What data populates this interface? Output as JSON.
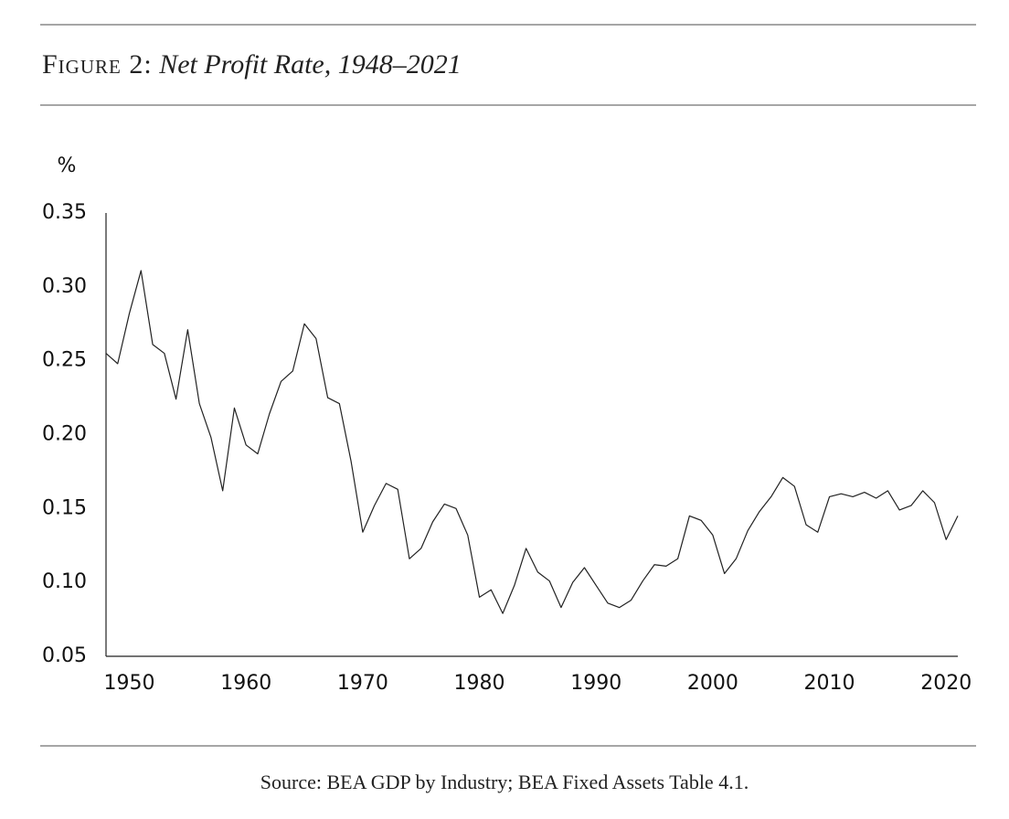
{
  "chart_data": {
    "type": "line",
    "figure_label": "Figure 2:",
    "title": "Net Profit Rate, 1948–2021",
    "y_label": "%",
    "source": "Source: BEA GDP by Industry; BEA Fixed Assets Table 4.1.",
    "x": [
      1948,
      1949,
      1950,
      1951,
      1952,
      1953,
      1954,
      1955,
      1956,
      1957,
      1958,
      1959,
      1960,
      1961,
      1962,
      1963,
      1964,
      1965,
      1966,
      1967,
      1968,
      1969,
      1970,
      1971,
      1972,
      1973,
      1974,
      1975,
      1976,
      1977,
      1978,
      1979,
      1980,
      1981,
      1982,
      1983,
      1984,
      1985,
      1986,
      1987,
      1988,
      1989,
      1990,
      1991,
      1992,
      1993,
      1994,
      1995,
      1996,
      1997,
      1998,
      1999,
      2000,
      2001,
      2002,
      2003,
      2004,
      2005,
      2006,
      2007,
      2008,
      2009,
      2010,
      2011,
      2012,
      2013,
      2014,
      2015,
      2016,
      2017,
      2018,
      2019,
      2020,
      2021
    ],
    "values": [
      0.255,
      0.248,
      0.282,
      0.311,
      0.261,
      0.255,
      0.224,
      0.271,
      0.221,
      0.198,
      0.162,
      0.218,
      0.193,
      0.187,
      0.214,
      0.236,
      0.243,
      0.275,
      0.265,
      0.225,
      0.221,
      0.182,
      0.134,
      0.152,
      0.167,
      0.163,
      0.116,
      0.123,
      0.141,
      0.153,
      0.15,
      0.132,
      0.09,
      0.095,
      0.079,
      0.098,
      0.123,
      0.107,
      0.101,
      0.083,
      0.1,
      0.11,
      0.098,
      0.086,
      0.083,
      0.088,
      0.101,
      0.112,
      0.111,
      0.116,
      0.145,
      0.142,
      0.132,
      0.106,
      0.116,
      0.135,
      0.148,
      0.158,
      0.171,
      0.165,
      0.139,
      0.134,
      0.158,
      0.16,
      0.158,
      0.161,
      0.157,
      0.162,
      0.149,
      0.152,
      0.162,
      0.154,
      0.129,
      0.145
    ],
    "color": "#222222",
    "xlim": [
      1948,
      2021
    ],
    "xticks": [
      1950,
      1960,
      1970,
      1980,
      1990,
      2000,
      2010,
      2020
    ],
    "ylim": [
      0.05,
      0.35
    ],
    "yticks": [
      0.05,
      {
        "value": 0.1,
        "label": "0.10"
      },
      0.15,
      {
        "value": 0.2,
        "label": "0.20"
      },
      0.25,
      {
        "value": 0.3,
        "label": "0.30"
      },
      0.35
    ],
    "grid": false
  }
}
